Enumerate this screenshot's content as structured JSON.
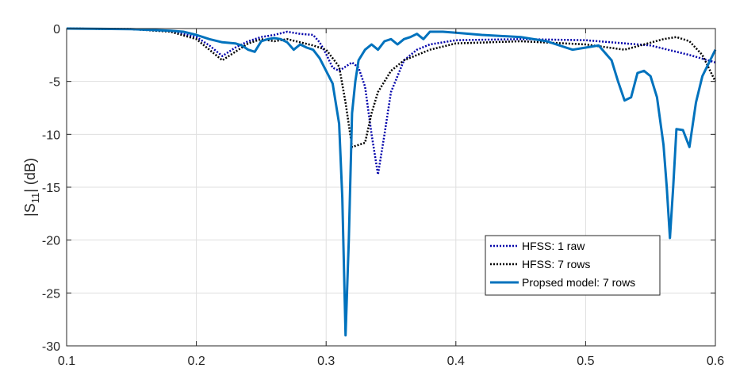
{
  "chart_data": {
    "type": "line",
    "xlabel": "",
    "ylabel_main": "|S",
    "ylabel_sub": "11",
    "ylabel_tail": "| (dB)",
    "xlim": [
      0.1,
      0.6
    ],
    "ylim": [
      -30,
      0
    ],
    "xticks": [
      0.1,
      0.2,
      0.3,
      0.4,
      0.5,
      0.6
    ],
    "xtick_labels": [
      "0.1",
      "0.2",
      "0.3",
      "0.4",
      "0.5",
      "0.6"
    ],
    "yticks": [
      0,
      -5,
      -10,
      -15,
      -20,
      -25,
      -30
    ],
    "ytick_labels": [
      "0",
      "-5",
      "-10",
      "-15",
      "-20",
      "-25",
      "-30"
    ],
    "grid": true,
    "legend_position": "bottom-right",
    "series": [
      {
        "name": "HFSS: 1 raw",
        "color": "#0000aa",
        "style": "dotted",
        "x": [
          0.1,
          0.15,
          0.18,
          0.2,
          0.21,
          0.22,
          0.23,
          0.24,
          0.25,
          0.26,
          0.27,
          0.28,
          0.29,
          0.295,
          0.3,
          0.305,
          0.31,
          0.315,
          0.32,
          0.325,
          0.33,
          0.335,
          0.34,
          0.345,
          0.35,
          0.36,
          0.37,
          0.38,
          0.4,
          0.45,
          0.5,
          0.55,
          0.58,
          0.6
        ],
        "y": [
          0,
          -0.05,
          -0.25,
          -0.8,
          -1.6,
          -2.6,
          -1.8,
          -1.2,
          -0.8,
          -0.6,
          -0.3,
          -0.5,
          -0.6,
          -1.3,
          -2.4,
          -3.7,
          -4.0,
          -3.6,
          -3.2,
          -3.7,
          -5.5,
          -10.0,
          -13.8,
          -10.0,
          -6.0,
          -3.0,
          -2.0,
          -1.5,
          -1.1,
          -1.0,
          -1.1,
          -1.6,
          -2.5,
          -3.2
        ]
      },
      {
        "name": "HFSS: 7 rows",
        "color": "#000000",
        "style": "dotted",
        "x": [
          0.1,
          0.15,
          0.18,
          0.2,
          0.21,
          0.22,
          0.23,
          0.24,
          0.25,
          0.26,
          0.27,
          0.28,
          0.29,
          0.3,
          0.305,
          0.31,
          0.315,
          0.32,
          0.325,
          0.33,
          0.335,
          0.34,
          0.35,
          0.36,
          0.38,
          0.4,
          0.45,
          0.5,
          0.53,
          0.56,
          0.57,
          0.58,
          0.59,
          0.6
        ],
        "y": [
          0,
          -0.05,
          -0.3,
          -1.0,
          -2.0,
          -3.0,
          -2.2,
          -1.4,
          -1.0,
          -1.2,
          -1.0,
          -1.3,
          -1.6,
          -2.0,
          -2.8,
          -3.6,
          -7.0,
          -11.2,
          -11.0,
          -10.8,
          -8.0,
          -6.0,
          -4.0,
          -3.0,
          -2.0,
          -1.4,
          -1.2,
          -1.5,
          -2.0,
          -1.0,
          -0.8,
          -1.2,
          -2.5,
          -5.0
        ]
      },
      {
        "name": "Propsed model: 7 rows",
        "color": "#0072bd",
        "style": "solid",
        "x": [
          0.1,
          0.15,
          0.18,
          0.19,
          0.2,
          0.21,
          0.22,
          0.23,
          0.235,
          0.24,
          0.245,
          0.25,
          0.255,
          0.26,
          0.265,
          0.27,
          0.275,
          0.28,
          0.285,
          0.29,
          0.295,
          0.3,
          0.305,
          0.31,
          0.3125,
          0.315,
          0.3175,
          0.32,
          0.3225,
          0.325,
          0.33,
          0.335,
          0.34,
          0.345,
          0.35,
          0.355,
          0.36,
          0.365,
          0.37,
          0.375,
          0.38,
          0.39,
          0.4,
          0.42,
          0.45,
          0.47,
          0.49,
          0.5,
          0.51,
          0.52,
          0.525,
          0.53,
          0.535,
          0.54,
          0.545,
          0.55,
          0.555,
          0.56,
          0.5625,
          0.565,
          0.5675,
          0.57,
          0.575,
          0.58,
          0.585,
          0.59,
          0.6
        ],
        "y": [
          0,
          -0.05,
          -0.2,
          -0.3,
          -0.6,
          -1.0,
          -1.3,
          -1.4,
          -1.6,
          -2.0,
          -2.2,
          -1.2,
          -1.0,
          -0.9,
          -1.0,
          -1.3,
          -2.0,
          -1.5,
          -1.8,
          -2.0,
          -2.8,
          -4.0,
          -5.2,
          -9.0,
          -16.0,
          -29.0,
          -20.0,
          -8.0,
          -5.0,
          -3.0,
          -2.0,
          -1.5,
          -2.0,
          -1.2,
          -1.0,
          -1.5,
          -1.0,
          -0.8,
          -0.5,
          -1.0,
          -0.3,
          -0.3,
          -0.4,
          -0.6,
          -0.8,
          -1.2,
          -2.0,
          -1.8,
          -1.6,
          -3.0,
          -5.0,
          -6.8,
          -6.5,
          -4.2,
          -4.0,
          -4.5,
          -6.5,
          -11.0,
          -15.0,
          -19.8,
          -15.0,
          -9.5,
          -9.6,
          -11.2,
          -7.0,
          -4.5,
          -2.0
        ]
      }
    ]
  }
}
